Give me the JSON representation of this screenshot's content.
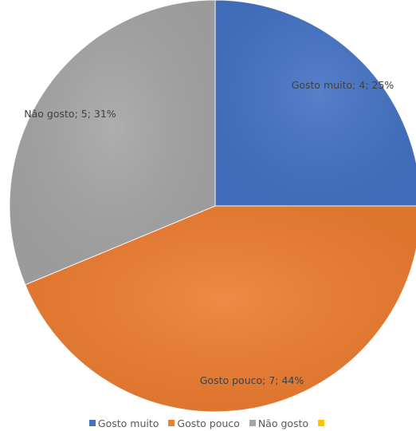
{
  "chart_data": {
    "type": "pie",
    "categories": [
      "Gosto muito",
      "Gosto pouco",
      "Não gosto",
      ""
    ],
    "values": [
      4,
      7,
      5,
      0
    ],
    "percentages": [
      "25%",
      "44%",
      "31%",
      ""
    ],
    "colors": [
      "#4472C4",
      "#ED7D31",
      "#A5A5A5",
      "#FFC000"
    ],
    "data_labels": [
      "Gosto muito; 4; 25%",
      "Gosto pouco; 7; 44%",
      "Não gosto; 5; 31%",
      ""
    ],
    "title": "",
    "legend_position": "bottom",
    "start_angle": "12 o'clock",
    "direction": "clockwise"
  }
}
